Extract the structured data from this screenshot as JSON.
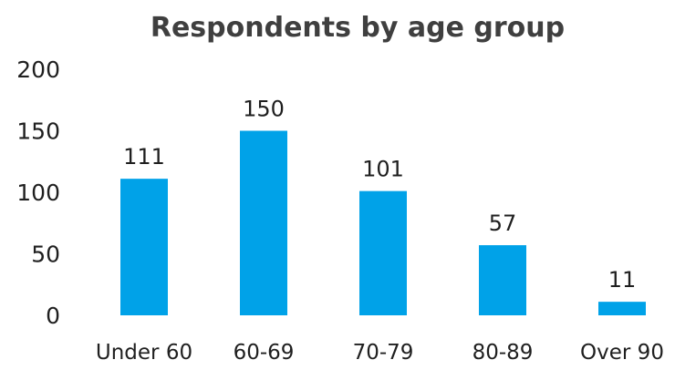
{
  "chart_data": {
    "type": "bar",
    "title": "Respondents by age group",
    "categories": [
      "Under 60",
      "60-69",
      "70-79",
      "80-89",
      "Over 90"
    ],
    "values": [
      111,
      150,
      101,
      57,
      11
    ],
    "ylim": [
      0,
      200
    ],
    "yticks": [
      0,
      50,
      100,
      150,
      200
    ],
    "ytick_labels": [
      "0",
      "50",
      "100",
      "150",
      "200"
    ],
    "xlabel": "",
    "ylabel": "",
    "grid": false,
    "data_labels": true,
    "bar_color": "#00a2e8"
  }
}
